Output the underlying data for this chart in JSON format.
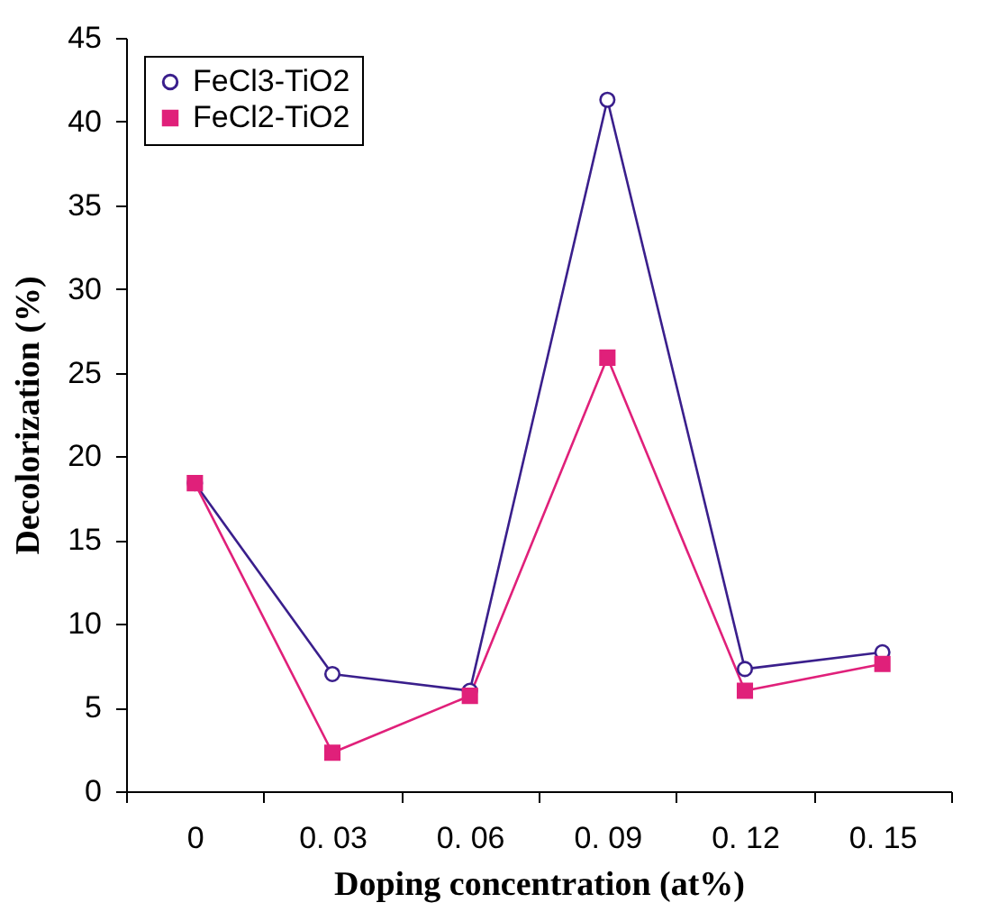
{
  "chart_data": {
    "type": "line",
    "xlabel": "Doping concentration (at%)",
    "ylabel": "Decolorization (%)",
    "categories": [
      "0",
      "0. 03",
      "0. 06",
      "0. 09",
      "0. 12",
      "0. 15"
    ],
    "series": [
      {
        "name": "FeCl3-TiO2",
        "color": "#3a1f8c",
        "marker": "circle",
        "values": [
          18.4,
          7.0,
          6.0,
          41.3,
          7.3,
          8.3
        ]
      },
      {
        "name": "FeCl2-TiO2",
        "color": "#e0207a",
        "marker": "square",
        "values": [
          18.4,
          2.3,
          5.7,
          25.9,
          6.0,
          7.6
        ]
      }
    ],
    "ylim": [
      0,
      45
    ],
    "yticks": [
      0,
      5,
      10,
      15,
      20,
      25,
      30,
      35,
      40,
      45
    ],
    "grid": false,
    "legend": "top left"
  }
}
